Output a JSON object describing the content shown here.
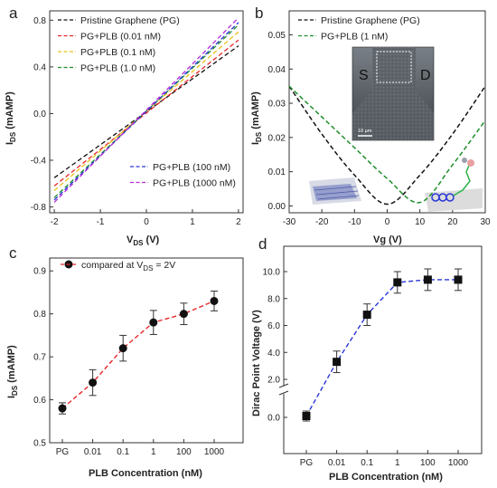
{
  "chart_data": [
    {
      "panel": "a",
      "type": "line",
      "xlabel_main": "V",
      "xlabel_sub": "DS",
      "xlabel_unit": " (V)",
      "ylabel_main": "I",
      "ylabel_sub": "DS",
      "ylabel_unit": " (mAMP)",
      "xlim": [
        -2.1,
        2.1
      ],
      "ylim": [
        -0.85,
        0.88
      ],
      "xticks": [
        -2,
        -1,
        0,
        1,
        2
      ],
      "yticks": [
        -0.8,
        -0.4,
        0.0,
        0.4,
        0.8
      ],
      "ytick_labels": [
        "-0.8",
        "-0.4",
        "0.0",
        "0.4",
        "0.8"
      ],
      "legend_upper": [
        "Pristine Graphene (PG)",
        "PG+PLB (0.01 nM)",
        "PG+PLB (0.1 nM)",
        "PG+PLB (1.0 nM)"
      ],
      "legend_lower": [
        "PG+PLB (100 nM)",
        "PG+PLB (1000 nM)"
      ],
      "series": [
        {
          "name": "Pristine Graphene (PG)",
          "color": "#111111",
          "x": [
            -2,
            2
          ],
          "y": [
            -0.55,
            0.58
          ]
        },
        {
          "name": "PG+PLB (0.01 nM)",
          "color": "#e8262a",
          "x": [
            -2,
            2
          ],
          "y": [
            -0.62,
            0.63
          ]
        },
        {
          "name": "PG+PLB (0.1 nM)",
          "color": "#e6c21a",
          "x": [
            -2,
            2
          ],
          "y": [
            -0.66,
            0.7
          ]
        },
        {
          "name": "PG+PLB (1.0 nM)",
          "color": "#1f8f2a",
          "x": [
            -2,
            2
          ],
          "y": [
            -0.72,
            0.76
          ]
        },
        {
          "name": "PG+PLB (100 nM)",
          "color": "#2a36d6",
          "x": [
            -2,
            2
          ],
          "y": [
            -0.74,
            0.78
          ]
        },
        {
          "name": "PG+PLB (1000 nM)",
          "color": "#b52bd6",
          "x": [
            -2,
            2
          ],
          "y": [
            -0.76,
            0.82
          ]
        }
      ]
    },
    {
      "panel": "b",
      "type": "line",
      "xlabel": "Vg (V)",
      "ylabel_main": "I",
      "ylabel_sub": "DS",
      "ylabel_unit": " (mAMP)",
      "xlim": [
        -30,
        30
      ],
      "ylim": [
        -0.002,
        0.057
      ],
      "xticks": [
        -30,
        -20,
        -10,
        0,
        10,
        20,
        30
      ],
      "yticks": [
        0.0,
        0.01,
        0.02,
        0.03,
        0.04,
        0.05
      ],
      "ytick_labels": [
        "0.00",
        "0.01",
        "0.02",
        "0.03",
        "0.04",
        "0.05"
      ],
      "inset_labels": {
        "source": "S",
        "drain": "D",
        "scale": "10 µm"
      },
      "series": [
        {
          "name": "Pristine Graphene (PG)",
          "color": "#111111",
          "x": [
            -30,
            -20,
            -10,
            0,
            10,
            20,
            30
          ],
          "y": [
            0.035,
            0.021,
            0.009,
            0.0005,
            0.009,
            0.021,
            0.035
          ]
        },
        {
          "name": "PG+PLB (1 nM)",
          "color": "#1f8f2a",
          "x": [
            -30,
            -20,
            -10,
            0,
            10,
            20,
            30
          ],
          "y": [
            0.035,
            0.026,
            0.017,
            0.008,
            0.001,
            0.012,
            0.025
          ]
        }
      ]
    },
    {
      "panel": "c",
      "type": "scatter",
      "xlabel": "PLB  Concentration (nM)",
      "ylabel_main": "I",
      "ylabel_sub": "DS",
      "ylabel_unit": " (mAMP)",
      "categories": [
        "PG",
        "0.01",
        "0.1",
        "1",
        "100",
        "1000"
      ],
      "ylim": [
        0.5,
        0.93
      ],
      "yticks": [
        0.5,
        0.6,
        0.7,
        0.8,
        0.9
      ],
      "ytick_labels": [
        "0.5",
        "0.6",
        "0.7",
        "0.8",
        "0.9"
      ],
      "legend_main": "compared at V",
      "legend_sub": "DS",
      "legend_tail": " = 2V",
      "color": "#e8262a",
      "values": [
        0.58,
        0.64,
        0.72,
        0.78,
        0.8,
        0.83
      ],
      "errors": [
        0.013,
        0.03,
        0.03,
        0.028,
        0.025,
        0.023
      ]
    },
    {
      "panel": "d",
      "type": "scatter",
      "xlabel": "PLB  Concentration (nM)",
      "ylabel": "Dirac Point Voltage (V)",
      "categories": [
        "PG",
        "0.01",
        "0.1",
        "1",
        "100",
        "1000"
      ],
      "yticks_upper": [
        2.0,
        4.0,
        6.0,
        8.0,
        10.0
      ],
      "ytick_labels_upper": [
        "2.0",
        "4.0",
        "6.0",
        "8.0",
        "10.0"
      ],
      "yticks_lower": [
        0.0
      ],
      "ytick_labels_lower": [
        "0.0"
      ],
      "color": "#2a36d6",
      "values": [
        0.1,
        3.3,
        6.8,
        9.2,
        9.4,
        9.4
      ],
      "errors": [
        0.35,
        0.8,
        0.8,
        0.8,
        0.8,
        0.8
      ]
    }
  ],
  "panel_labels": [
    "a",
    "b",
    "c",
    "d"
  ]
}
